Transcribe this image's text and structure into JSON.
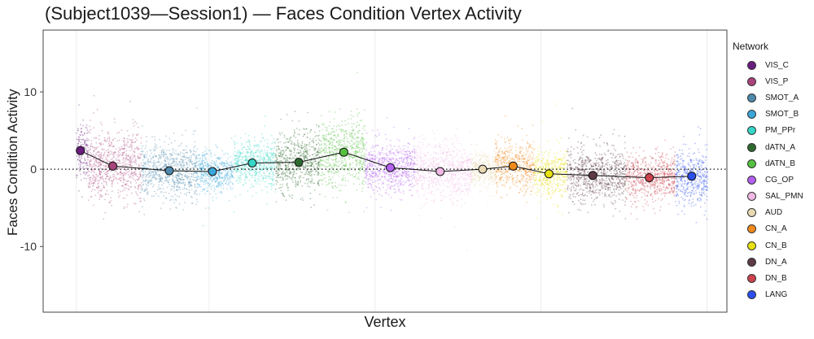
{
  "chart_data": {
    "type": "scatter",
    "title": "(Subject1039—Session1) — Faces Condition Vertex Activity",
    "xlabel": "Vertex",
    "ylabel": "Faces Condition Activity",
    "xlim": [
      0,
      10300
    ],
    "ylim": [
      -18.5,
      18
    ],
    "yticks": [
      -10,
      0,
      10
    ],
    "ytick_labels": [
      "-10",
      "0",
      "10"
    ],
    "reference_line_y": 0,
    "legend_title": "Network",
    "legend_position": "right",
    "grid": true,
    "series": [
      {
        "name": "VIS_C",
        "color": "#6b1d7f",
        "x_range": [
          500,
          680
        ],
        "mean": 2.4,
        "spread": 1.6
      },
      {
        "name": "VIS_P",
        "color": "#a8447a",
        "x_range": [
          680,
          1480
        ],
        "mean": 0.4,
        "spread": 2.2
      },
      {
        "name": "SMOT_A",
        "color": "#4e8aad",
        "x_range": [
          1480,
          2320
        ],
        "mean": -0.2,
        "spread": 1.7
      },
      {
        "name": "SMOT_B",
        "color": "#3aa6d9",
        "x_range": [
          2320,
          2860
        ],
        "mean": -0.3,
        "spread": 1.3
      },
      {
        "name": "PM_PPr",
        "color": "#35d7c7",
        "x_range": [
          2860,
          3500
        ],
        "mean": 0.8,
        "spread": 1.4
      },
      {
        "name": "dATN_A",
        "color": "#2d6a2f",
        "x_range": [
          3500,
          4170
        ],
        "mean": 0.9,
        "spread": 1.9
      },
      {
        "name": "dATN_B",
        "color": "#54c13f",
        "x_range": [
          4170,
          4850
        ],
        "mean": 2.2,
        "spread": 2.2
      },
      {
        "name": "CG_OP",
        "color": "#b45ff0",
        "x_range": [
          4850,
          5600
        ],
        "mean": 0.2,
        "spread": 1.6
      },
      {
        "name": "SAL_PMN",
        "color": "#f2b8e6",
        "x_range": [
          5600,
          6450
        ],
        "mean": -0.3,
        "spread": 1.9
      },
      {
        "name": "AUD",
        "color": "#e8d9b3",
        "x_range": [
          6450,
          6810
        ],
        "mean": 0.0,
        "spread": 1.1
      },
      {
        "name": "CN_A",
        "color": "#f08a1d",
        "x_range": [
          6810,
          7400
        ],
        "mean": 0.4,
        "spread": 1.6
      },
      {
        "name": "CN_B",
        "color": "#e8e010",
        "x_range": [
          7400,
          7890
        ],
        "mean": -0.6,
        "spread": 1.5
      },
      {
        "name": "DN_A",
        "color": "#5d3a45",
        "x_range": [
          7890,
          8780
        ],
        "mean": -0.8,
        "spread": 1.7
      },
      {
        "name": "DN_B",
        "color": "#cc434e",
        "x_range": [
          8780,
          9530
        ],
        "mean": -1.1,
        "spread": 1.5
      },
      {
        "name": "LANG",
        "color": "#2b4ff0",
        "x_range": [
          9530,
          10010
        ],
        "mean": -0.9,
        "spread": 1.8
      }
    ],
    "mean_line": {
      "x": [
        560,
        1050,
        1900,
        2550,
        3150,
        3850,
        4530,
        5230,
        5980,
        6620,
        7080,
        7620,
        8280,
        9130,
        9770
      ],
      "y": [
        2.4,
        0.4,
        -0.2,
        -0.3,
        0.8,
        0.9,
        2.2,
        0.2,
        -0.3,
        0.0,
        0.4,
        -0.6,
        -0.8,
        -1.1,
        -0.9
      ]
    }
  }
}
